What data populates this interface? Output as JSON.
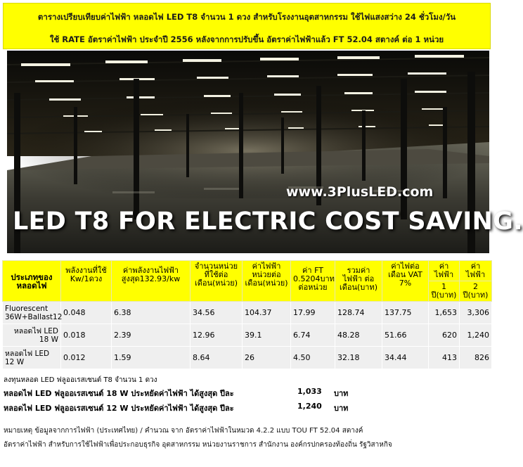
{
  "header": {
    "line1": "ตารางเปรียบเทียบค่าไฟฟ้า หลอดไฟ LED T8 จำนวน 1 ดวง สำหรับโรงงานอุตสาหกรรม ใช้ไฟแสงสว่าง 24 ชั่วโมง/วัน",
    "line2": "ใช้ RATE อัตราค่าไฟฟ้า ประจำปี 2556 หลังจากการปรับขึ้น อัตราค่าไฟฟ้าแล้ว FT 52.04 สตางค์ ต่อ 1 หน่วย"
  },
  "banner": {
    "website": "www.3PlusLED.com",
    "slogan": "LED T8 FOR ELECTRIC COST SAVING."
  },
  "table": {
    "headers": [
      "ประเภทของหลอดไฟ",
      "พลังงานที่ใช้ Kw/1ดวง",
      "ค่าพลังงานไฟฟ้า สูงสุด132.93/kw",
      "จำนวนหน่วย ที่ใช้ต่อเดือน(หน่วย)",
      "ค่าไฟฟ้า หน่วยต่อเดือน(หน่วย)",
      "ค่า FT 0.5204บาทต่อหน่วย",
      "รวมค่าไฟฟ้า ต่อเดือน(บาท)",
      "ค่าไฟต่อเดือน VAT 7%",
      "ค่าไฟฟ้า",
      "ค่าไฟฟ้า"
    ],
    "year_headers": [
      "1 ปี(บาท)",
      "2 ปี(บาท)"
    ],
    "rows": [
      {
        "name": "Fluorescent 36W+Ballast12",
        "kw": "0.048",
        "demand": "6.38",
        "units": "34.56",
        "energy": "104.37",
        "ft": "17.99",
        "total": "128.74",
        "vat": "137.75",
        "y1": "1,653",
        "y2": "3,306"
      },
      {
        "name": "หลอดไฟ LED 18 W",
        "kw": "0.018",
        "demand": "2.39",
        "units": "12.96",
        "energy": "39.1",
        "ft": "6.74",
        "total": "48.28",
        "vat": "51.66",
        "y1": "620",
        "y2": "1,240"
      },
      {
        "name": "หลอดไฟ LED 12 W",
        "kw": "0.012",
        "demand": "1.59",
        "units": "8.64",
        "energy": "26",
        "ft": "4.50",
        "total": "32.18",
        "vat": "34.44",
        "y1": "413",
        "y2": "826"
      }
    ]
  },
  "note": "ลงทุนหลอด LED ฟลูออเรสเซนต์ T8 จำนวน 1 ดวง",
  "savings": [
    {
      "text": "หลอดไฟ LED ฟลูออเรสเซนต์ 18 W ประหยัดค่าไฟฟ้า ได้สูงสุด ปีละ",
      "amount": "1,033",
      "unit": "บาท"
    },
    {
      "text": "หลอดไฟ LED ฟลูออเรสเซนต์ 12 W ประหยัดค่าไฟฟ้า ได้สูงสุด ปีละ",
      "amount": "1,240",
      "unit": "บาท"
    }
  ],
  "footer": {
    "line1": "หมายเหตุ ข้อมูลจากการไฟฟ้า (ประเทศไทย) / คำนวณ จาก อัตราค่าไฟฟ้าในหมวด 4.2.2 แบบ TOU FT 52.04 สตางค์",
    "line2": "อัตราค่าไฟฟ้า สำหรับการใช้ไฟฟ้าเพื่อประกอบธุรกิจ อุตสาหกรรม หน่วยงานราชการ สำนักงาน องค์กรปกครองท้องถิ่น รัฐวิสาหกิจ"
  }
}
